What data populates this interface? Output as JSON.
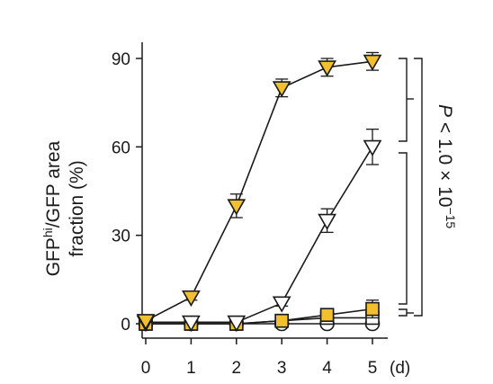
{
  "chart_data": {
    "type": "line",
    "title": "",
    "xlabel": "",
    "x_unit": "(d)",
    "ylabel_parts": [
      "GFP",
      "hi",
      "/GFP area",
      "fraction (%)"
    ],
    "x": [
      0,
      1,
      2,
      3,
      4,
      5
    ],
    "xlim": [
      0,
      5
    ],
    "ylim": [
      0,
      90
    ],
    "xticks": [
      0,
      1,
      2,
      3,
      4,
      5
    ],
    "yticks": [
      0,
      30,
      60,
      90
    ],
    "grid": false,
    "series": [
      {
        "marker": "triangle-down",
        "fill": "#f2bf2f",
        "values": [
          1,
          9,
          40,
          80,
          87,
          89
        ],
        "errors": [
          0.5,
          1,
          4,
          3,
          3,
          3
        ]
      },
      {
        "marker": "triangle-down",
        "fill": "#ffffff",
        "values": [
          0.5,
          0.5,
          0.5,
          7,
          35,
          60
        ],
        "errors": [
          0.3,
          0.3,
          0.3,
          1,
          4,
          6
        ]
      },
      {
        "marker": "square",
        "fill": "#f2bf2f",
        "values": [
          0,
          0,
          0,
          1,
          3,
          5
        ],
        "errors": [
          0,
          0,
          0,
          0.5,
          1,
          3
        ]
      },
      {
        "marker": "square",
        "fill": "#ffffff",
        "values": [
          0,
          0,
          0,
          1,
          2,
          2
        ],
        "errors": [
          0,
          0,
          0,
          0.3,
          0.5,
          1
        ]
      },
      {
        "marker": "circle",
        "fill": "#ffffff",
        "values": [
          0,
          0,
          0,
          0,
          0,
          0
        ],
        "errors": [
          0,
          0,
          0,
          0,
          0,
          0
        ]
      }
    ],
    "annotation": {
      "text_p": "P",
      "text_rest": " < 1.0 × 10",
      "text_exp": "−15"
    }
  }
}
